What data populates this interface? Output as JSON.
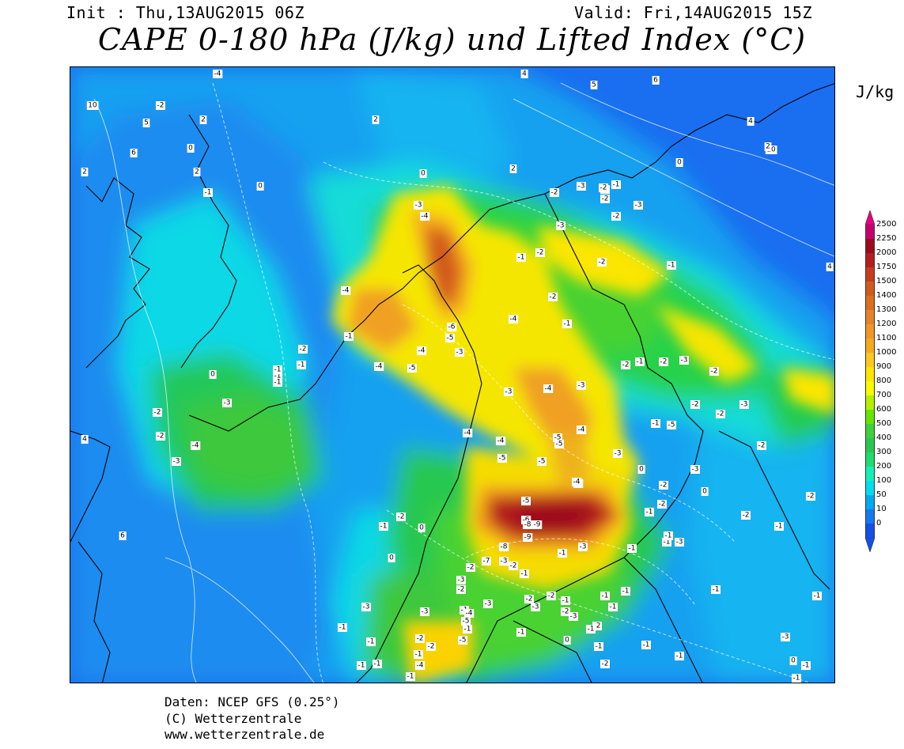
{
  "header": {
    "init": "Init : Thu,13AUG2015 06Z",
    "valid": "Valid: Fri,14AUG2015 15Z",
    "title": "CAPE 0-180 hPa (J/kg) und Lifted Index (°C)"
  },
  "legend": {
    "unit": "J/kg",
    "levels": [
      "2500",
      "2250",
      "2000",
      "1750",
      "1500",
      "1400",
      "1300",
      "1200",
      "1100",
      "1000",
      "900",
      "800",
      "700",
      "600",
      "500",
      "400",
      "300",
      "200",
      "100",
      "50",
      "10",
      "0"
    ],
    "colors": [
      "#c8006e",
      "#9c0a1e",
      "#b41e1e",
      "#c83c1e",
      "#d25a1e",
      "#dc6e1e",
      "#e68228",
      "#f09628",
      "#f5aa1e",
      "#fac81e",
      "#fae600",
      "#fafa00",
      "#b4f000",
      "#64e600",
      "#3cd23c",
      "#28c850",
      "#1edc6e",
      "#14f0b4",
      "#00dcf0",
      "#00aaf0",
      "#1478f0",
      "#1450e6"
    ],
    "top_arrow_color": "#e6007e",
    "bottom_arrow_color": "#1450e6"
  },
  "map": {
    "lifted_index_labels": [
      {
        "v": "-4"
      },
      {
        "v": "2"
      },
      {
        "v": "-2"
      },
      {
        "v": "4"
      },
      {
        "v": "6"
      },
      {
        "v": "10"
      },
      {
        "v": "5"
      },
      {
        "v": "2"
      },
      {
        "v": "0"
      },
      {
        "v": "6"
      },
      {
        "v": "2"
      },
      {
        "v": "-1"
      },
      {
        "v": "0"
      },
      {
        "v": "-3"
      },
      {
        "v": "-4"
      },
      {
        "v": "-3"
      },
      {
        "v": "-2"
      },
      {
        "v": "-1"
      },
      {
        "v": "-3"
      },
      {
        "v": "-2"
      },
      {
        "v": "-1"
      },
      {
        "v": "-4"
      },
      {
        "v": "-2"
      },
      {
        "v": "-4"
      },
      {
        "v": "-1"
      },
      {
        "v": "-5"
      },
      {
        "v": "-6"
      },
      {
        "v": "-5"
      },
      {
        "v": "-3"
      },
      {
        "v": "-4"
      },
      {
        "v": "-5"
      },
      {
        "v": "-4"
      },
      {
        "v": "-2"
      },
      {
        "v": "-1"
      },
      {
        "v": "-3"
      },
      {
        "v": "-4"
      },
      {
        "v": "-4"
      },
      {
        "v": "-3"
      },
      {
        "v": "-5"
      },
      {
        "v": "-4"
      },
      {
        "v": "-4"
      },
      {
        "v": "-5"
      },
      {
        "v": "-5"
      },
      {
        "v": "-4"
      },
      {
        "v": "-3"
      },
      {
        "v": "-2"
      },
      {
        "v": "-1"
      },
      {
        "v": "-2"
      },
      {
        "v": "-3"
      },
      {
        "v": "-2"
      },
      {
        "v": "-2"
      },
      {
        "v": "-2"
      },
      {
        "v": "-3"
      },
      {
        "v": "-5"
      },
      {
        "v": "-1"
      },
      {
        "v": "-1"
      },
      {
        "v": "-2"
      },
      {
        "v": "-1"
      },
      {
        "v": "-3"
      },
      {
        "v": "-2"
      },
      {
        "v": "-4"
      },
      {
        "v": "-2"
      },
      {
        "v": "-3"
      },
      {
        "v": "-1"
      },
      {
        "v": "-1"
      },
      {
        "v": "0"
      },
      {
        "v": "-2"
      },
      {
        "v": "-1"
      },
      {
        "v": "-1"
      },
      {
        "v": "-1"
      },
      {
        "v": "-1"
      },
      {
        "v": "0"
      },
      {
        "v": "-4"
      },
      {
        "v": "-3"
      },
      {
        "v": "-5"
      },
      {
        "v": "-6"
      },
      {
        "v": "-8"
      },
      {
        "v": "-9"
      },
      {
        "v": "-9"
      },
      {
        "v": "-8"
      },
      {
        "v": "-7"
      },
      {
        "v": "-3"
      },
      {
        "v": "-2"
      },
      {
        "v": "-1"
      },
      {
        "v": "-2"
      },
      {
        "v": "-1"
      },
      {
        "v": "-3"
      },
      {
        "v": "-2"
      },
      {
        "v": "-3"
      },
      {
        "v": "-1"
      },
      {
        "v": "-2"
      },
      {
        "v": "-3"
      },
      {
        "v": "-2"
      },
      {
        "v": "-1"
      },
      {
        "v": "-3"
      },
      {
        "v": "-5"
      },
      {
        "v": "-1"
      },
      {
        "v": "-3"
      },
      {
        "v": "-4"
      },
      {
        "v": "-1"
      },
      {
        "v": "-1"
      },
      {
        "v": "-2"
      },
      {
        "v": "-1"
      },
      {
        "v": "0"
      },
      {
        "v": "-1"
      },
      {
        "v": "-2"
      },
      {
        "v": "0"
      },
      {
        "v": "-2"
      },
      {
        "v": "-1"
      },
      {
        "v": "-2"
      },
      {
        "v": "-1"
      },
      {
        "v": "-1"
      },
      {
        "v": "-1"
      },
      {
        "v": "0"
      },
      {
        "v": "-2"
      },
      {
        "v": "-3"
      },
      {
        "v": "-3"
      },
      {
        "v": "-1"
      },
      {
        "v": "-3"
      },
      {
        "v": "0"
      },
      {
        "v": "-5"
      },
      {
        "v": "-1"
      },
      {
        "v": "-4"
      },
      {
        "v": "-2"
      },
      {
        "v": "-1"
      },
      {
        "v": "-1"
      },
      {
        "v": "-1"
      },
      {
        "v": "-3"
      },
      {
        "v": "-1"
      },
      {
        "v": "-1"
      },
      {
        "v": "-2"
      },
      {
        "v": "-1"
      },
      {
        "v": "-1"
      },
      {
        "v": "-2"
      },
      {
        "v": "-2"
      },
      {
        "v": "-2"
      },
      {
        "v": "-1"
      },
      {
        "v": "-1"
      },
      {
        "v": "4"
      },
      {
        "v": "6"
      },
      {
        "v": "5"
      },
      {
        "v": "4"
      },
      {
        "v": "10"
      },
      {
        "v": "4"
      },
      {
        "v": "2"
      },
      {
        "v": "0"
      },
      {
        "v": "2"
      },
      {
        "v": "0"
      },
      {
        "v": "-3"
      },
      {
        "v": "-2"
      },
      {
        "v": "-3"
      },
      {
        "v": "-2"
      },
      {
        "v": "-1"
      },
      {
        "v": "-2"
      },
      {
        "v": "-2"
      },
      {
        "v": "-1"
      },
      {
        "v": "-5"
      },
      {
        "v": "-1"
      },
      {
        "v": "0"
      },
      {
        "v": "2"
      }
    ]
  },
  "credits": {
    "line1": "Daten: NCEP GFS (0.25°)",
    "line2": "(C) Wetterzentrale",
    "line3": "www.wetterzentrale.de"
  }
}
